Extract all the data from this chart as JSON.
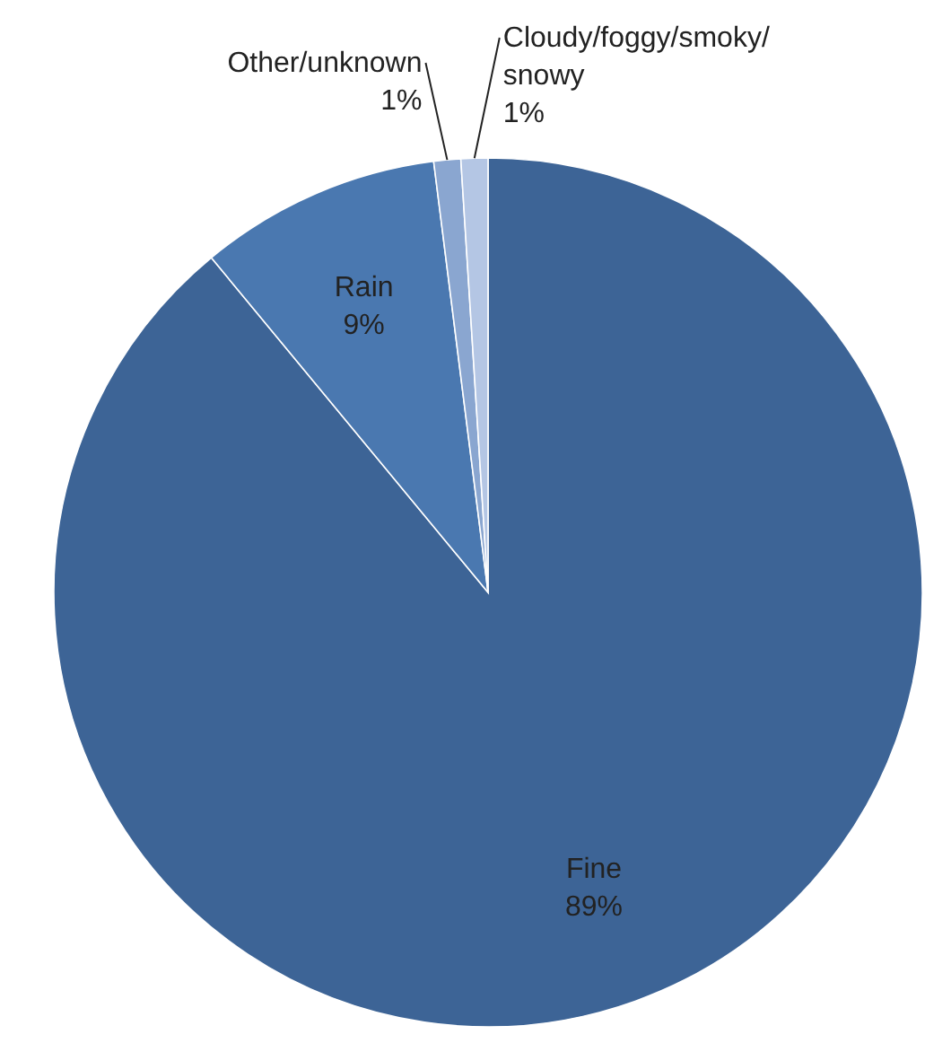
{
  "chart_data": {
    "type": "pie",
    "categories": [
      "Fine",
      "Rain",
      "Other/unknown",
      "Cloudy/foggy/smoky/snowy"
    ],
    "values": [
      89,
      9,
      1,
      1
    ],
    "colors": [
      "#3d6496",
      "#4a78b0",
      "#8aa6d0",
      "#b4c6e4"
    ],
    "value_labels": [
      "89%",
      "9%",
      "1%",
      "1%"
    ]
  }
}
